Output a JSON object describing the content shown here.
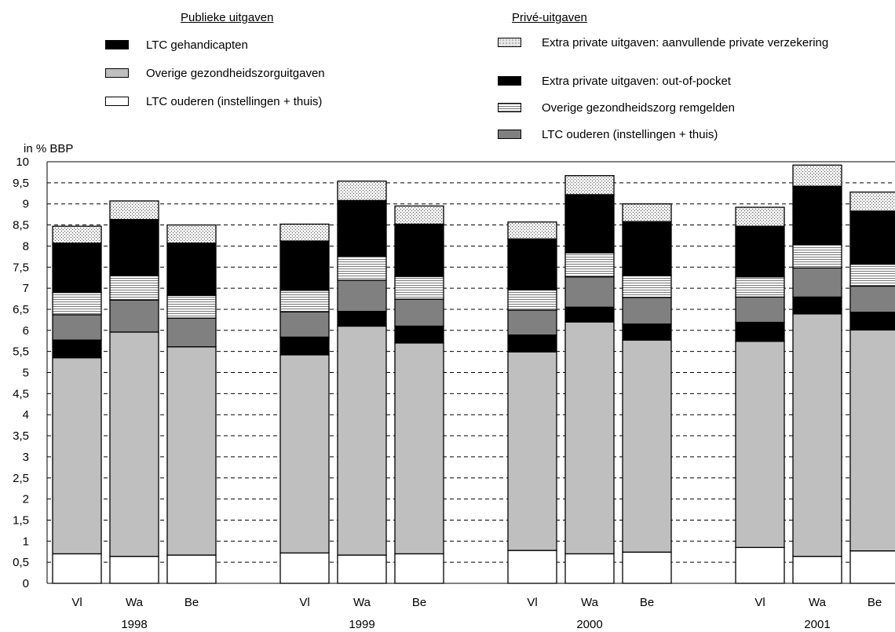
{
  "legend": {
    "public_title": "Publieke uitgaven",
    "private_title": "Privé-uitgaven"
  },
  "chart_data": {
    "type": "bar",
    "stacked": true,
    "ylabel": "in % BBP",
    "ylim": [
      0,
      10
    ],
    "yticks": [
      "0",
      "0,5",
      "1",
      "1,5",
      "2",
      "2,5",
      "3",
      "3,5",
      "4",
      "4,5",
      "5",
      "5,5",
      "6",
      "6,5",
      "7",
      "7,5",
      "8",
      "8,5",
      "9",
      "9,5",
      "10"
    ],
    "grid": "horizontal dashed",
    "groups": [
      "1998",
      "1999",
      "2000",
      "2001"
    ],
    "categories": [
      "Vl",
      "Wa",
      "Be"
    ],
    "series": [
      {
        "name": "LTC ouderen (instellingen + thuis)",
        "group": "Publieke uitgaven",
        "color": "#ffffff",
        "pattern": "none",
        "values": [
          [
            0.7,
            0.64,
            0.67
          ],
          [
            0.72,
            0.67,
            0.7
          ],
          [
            0.78,
            0.7,
            0.74
          ],
          [
            0.85,
            0.64,
            0.77
          ]
        ]
      },
      {
        "name": "Overige gezondheidszorguitgaven",
        "group": "Publieke uitgaven",
        "color": "#bfbfbf",
        "pattern": "none",
        "values": [
          [
            4.65,
            5.32,
            4.94
          ],
          [
            4.7,
            5.43,
            5.0
          ],
          [
            4.71,
            5.5,
            5.03
          ],
          [
            4.89,
            5.75,
            5.24
          ]
        ]
      },
      {
        "name": "LTC gehandicapten",
        "group": "Publieke uitgaven",
        "color": "#000000",
        "pattern": "none",
        "values": [
          [
            0.42,
            0.0,
            0.0
          ],
          [
            0.42,
            0.35,
            0.4
          ],
          [
            0.4,
            0.35,
            0.38
          ],
          [
            0.45,
            0.4,
            0.42
          ]
        ]
      },
      {
        "name": "LTC ouderen (instellingen + thuis)",
        "group": "Privé-uitgaven",
        "color": "#808080",
        "pattern": "none",
        "values": [
          [
            0.6,
            0.76,
            0.68
          ],
          [
            0.6,
            0.74,
            0.64
          ],
          [
            0.59,
            0.72,
            0.63
          ],
          [
            0.6,
            0.69,
            0.62
          ]
        ]
      },
      {
        "name": "Overige gezondheidszorg remgelden",
        "group": "Privé-uitgaven",
        "color": "#ffffff",
        "pattern": "hlines",
        "values": [
          [
            0.53,
            0.58,
            0.54
          ],
          [
            0.51,
            0.57,
            0.54
          ],
          [
            0.48,
            0.57,
            0.52
          ],
          [
            0.48,
            0.56,
            0.52
          ]
        ]
      },
      {
        "name": "Extra private uitgaven: out-of-pocket",
        "group": "Privé-uitgaven",
        "color": "#000000",
        "pattern": "none",
        "values": [
          [
            1.17,
            1.33,
            1.24
          ],
          [
            1.17,
            1.32,
            1.24
          ],
          [
            1.21,
            1.38,
            1.28
          ],
          [
            1.2,
            1.38,
            1.26
          ]
        ]
      },
      {
        "name": "Extra private uitgaven: aanvullende private verzekering",
        "group": "Privé-uitgaven",
        "color": "#e6e6e6",
        "pattern": "dots",
        "values": [
          [
            0.4,
            0.44,
            0.43
          ],
          [
            0.4,
            0.46,
            0.43
          ],
          [
            0.4,
            0.45,
            0.42
          ],
          [
            0.45,
            0.5,
            0.45
          ]
        ]
      }
    ]
  }
}
